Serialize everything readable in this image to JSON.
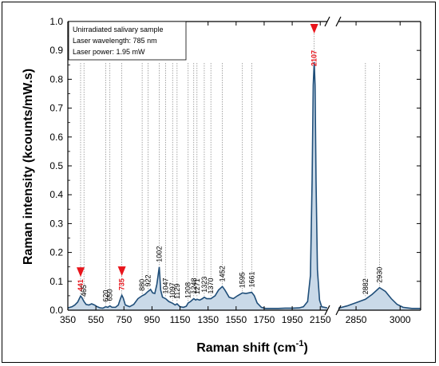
{
  "chart_data": {
    "type": "area",
    "title": "",
    "xlabel": "Raman shift (cm",
    "xlabel_sup": "-1",
    "xlabel_close": ")",
    "ylabel": "Raman intensity (kcounts/mW.s)",
    "ylim": [
      0,
      1.0
    ],
    "yticks": [
      "0.0",
      "0.1",
      "0.2",
      "0.3",
      "0.4",
      "0.5",
      "0.6",
      "0.7",
      "0.8",
      "0.9",
      "1.0"
    ],
    "x_segments": [
      {
        "range": [
          350,
          2200
        ],
        "ticks": [
          "350",
          "550",
          "750",
          "950",
          "1150",
          "1350",
          "1550",
          "1750",
          "1950",
          "2150"
        ]
      },
      {
        "range": [
          2790,
          3070
        ],
        "ticks": [
          "2850",
          "3000"
        ]
      }
    ],
    "axis_break": true,
    "grid": false,
    "legend_box": {
      "lines": [
        "Unirradiated salivary sample",
        "Laser wavelength: 785 nm",
        "Laser power: 1.95 mW"
      ],
      "placement": "top-left"
    },
    "series": [
      {
        "points": [
          [
            350,
            0.008
          ],
          [
            380,
            0.012
          ],
          [
            400,
            0.018
          ],
          [
            420,
            0.028
          ],
          [
            432,
            0.04
          ],
          [
            441,
            0.049
          ],
          [
            450,
            0.044
          ],
          [
            465,
            0.03
          ],
          [
            480,
            0.02
          ],
          [
            500,
            0.018
          ],
          [
            520,
            0.022
          ],
          [
            540,
            0.018
          ],
          [
            560,
            0.012
          ],
          [
            580,
            0.008
          ],
          [
            600,
            0.007
          ],
          [
            620,
            0.012
          ],
          [
            635,
            0.01
          ],
          [
            650,
            0.015
          ],
          [
            665,
            0.01
          ],
          [
            690,
            0.01
          ],
          [
            710,
            0.018
          ],
          [
            725,
            0.04
          ],
          [
            735,
            0.052
          ],
          [
            745,
            0.042
          ],
          [
            760,
            0.018
          ],
          [
            790,
            0.012
          ],
          [
            820,
            0.02
          ],
          [
            850,
            0.04
          ],
          [
            880,
            0.05
          ],
          [
            900,
            0.055
          ],
          [
            922,
            0.065
          ],
          [
            940,
            0.072
          ],
          [
            955,
            0.06
          ],
          [
            970,
            0.058
          ],
          [
            985,
            0.09
          ],
          [
            1002,
            0.15
          ],
          [
            1012,
            0.07
          ],
          [
            1025,
            0.045
          ],
          [
            1047,
            0.04
          ],
          [
            1070,
            0.03
          ],
          [
            1097,
            0.024
          ],
          [
            1115,
            0.018
          ],
          [
            1129,
            0.022
          ],
          [
            1150,
            0.012
          ],
          [
            1175,
            0.01
          ],
          [
            1195,
            0.014
          ],
          [
            1208,
            0.025
          ],
          [
            1225,
            0.03
          ],
          [
            1248,
            0.04
          ],
          [
            1262,
            0.035
          ],
          [
            1271,
            0.038
          ],
          [
            1290,
            0.035
          ],
          [
            1310,
            0.04
          ],
          [
            1323,
            0.045
          ],
          [
            1340,
            0.04
          ],
          [
            1370,
            0.04
          ],
          [
            1400,
            0.05
          ],
          [
            1425,
            0.07
          ],
          [
            1452,
            0.082
          ],
          [
            1470,
            0.07
          ],
          [
            1500,
            0.045
          ],
          [
            1530,
            0.04
          ],
          [
            1560,
            0.05
          ],
          [
            1595,
            0.06
          ],
          [
            1620,
            0.058
          ],
          [
            1640,
            0.06
          ],
          [
            1661,
            0.062
          ],
          [
            1680,
            0.05
          ],
          [
            1700,
            0.025
          ],
          [
            1730,
            0.01
          ],
          [
            1760,
            0.006
          ],
          [
            1800,
            0.006
          ],
          [
            1850,
            0.006
          ],
          [
            1900,
            0.007
          ],
          [
            1950,
            0.007
          ],
          [
            2000,
            0.008
          ],
          [
            2030,
            0.012
          ],
          [
            2060,
            0.03
          ],
          [
            2080,
            0.12
          ],
          [
            2092,
            0.45
          ],
          [
            2100,
            0.78
          ],
          [
            2107,
            0.86
          ],
          [
            2113,
            0.78
          ],
          [
            2120,
            0.45
          ],
          [
            2130,
            0.14
          ],
          [
            2145,
            0.035
          ],
          [
            2160,
            0.012
          ],
          [
            2200,
            0.008
          ],
          [
            2790,
            0.007
          ],
          [
            2820,
            0.015
          ],
          [
            2850,
            0.026
          ],
          [
            2882,
            0.038
          ],
          [
            2905,
            0.055
          ],
          [
            2930,
            0.078
          ],
          [
            2950,
            0.065
          ],
          [
            2970,
            0.04
          ],
          [
            2990,
            0.02
          ],
          [
            3010,
            0.01
          ],
          [
            3040,
            0.006
          ],
          [
            3070,
            0.006
          ]
        ]
      }
    ],
    "peak_labels": [
      {
        "x": 441,
        "label": "441",
        "highlight": true
      },
      {
        "x": 465,
        "label": "465",
        "highlight": false
      },
      {
        "x": 620,
        "label": "620",
        "highlight": false
      },
      {
        "x": 650,
        "label": "650",
        "highlight": false
      },
      {
        "x": 735,
        "label": "735",
        "highlight": true
      },
      {
        "x": 880,
        "label": "880",
        "highlight": false
      },
      {
        "x": 922,
        "label": "922",
        "highlight": false
      },
      {
        "x": 1002,
        "label": "1002",
        "highlight": false
      },
      {
        "x": 1047,
        "label": "1047",
        "highlight": false
      },
      {
        "x": 1097,
        "label": "1097",
        "highlight": false
      },
      {
        "x": 1129,
        "label": "1129",
        "highlight": false
      },
      {
        "x": 1208,
        "label": "1208",
        "highlight": false
      },
      {
        "x": 1248,
        "label": "1248",
        "highlight": false
      },
      {
        "x": 1271,
        "label": "1271",
        "highlight": false
      },
      {
        "x": 1323,
        "label": "1323",
        "highlight": false
      },
      {
        "x": 1370,
        "label": "1370",
        "highlight": false
      },
      {
        "x": 1452,
        "label": "1452",
        "highlight": false
      },
      {
        "x": 1595,
        "label": "1595",
        "highlight": false
      },
      {
        "x": 1661,
        "label": "1661",
        "highlight": false
      },
      {
        "x": 2107,
        "label": "2107",
        "highlight": true
      },
      {
        "x": 2882,
        "label": "2882",
        "highlight": false
      },
      {
        "x": 2930,
        "label": "2930",
        "highlight": false
      }
    ],
    "colors": {
      "line": "#1f4e79",
      "fill": "#c9d9e8",
      "marker": "#e8141b",
      "guide": "#808080"
    }
  }
}
